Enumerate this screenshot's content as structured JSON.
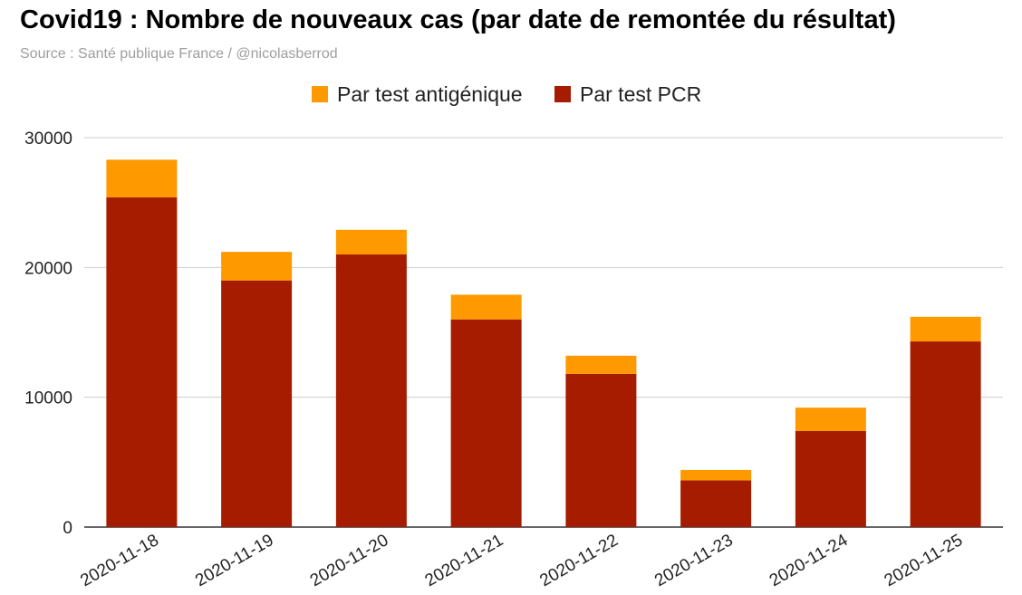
{
  "header": {
    "title": "Covid19 : Nombre de nouveaux cas (par date de remontée du résultat)",
    "source": "Source : Santé publique France / @nicolasberrod"
  },
  "chart_data": {
    "type": "bar",
    "stacked": true,
    "categories": [
      "2020-11-18",
      "2020-11-19",
      "2020-11-20",
      "2020-11-21",
      "2020-11-22",
      "2020-11-23",
      "2020-11-24",
      "2020-11-25"
    ],
    "series": [
      {
        "name": "Par test PCR",
        "color": "#a61c00",
        "values": [
          25400,
          19000,
          21000,
          16000,
          11800,
          3600,
          7400,
          14300
        ]
      },
      {
        "name": "Par test antigénique",
        "color": "#ff9900",
        "values": [
          2900,
          2200,
          1900,
          1900,
          1400,
          800,
          1800,
          1900
        ]
      }
    ],
    "legend_order": [
      1,
      0
    ],
    "legend_position": "top",
    "y_ticks": [
      0,
      10000,
      20000,
      30000
    ],
    "ylim": [
      0,
      30000
    ],
    "grid": true
  }
}
